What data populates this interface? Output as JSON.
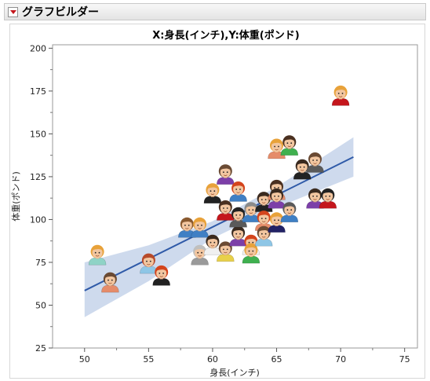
{
  "window": {
    "title": "グラフビルダー"
  },
  "chart_data": {
    "type": "scatter",
    "title": "X:身長(インチ),Y:体重(ポンド)",
    "xlabel": "身長(インチ)",
    "ylabel": "体重(ポンド)",
    "xlim": [
      47.5,
      76
    ],
    "ylim": [
      25,
      202
    ],
    "xticks": [
      50,
      55,
      60,
      65,
      70,
      75
    ],
    "yticks": [
      25,
      50,
      75,
      100,
      125,
      150,
      175,
      200
    ],
    "marker": "person-face-icon",
    "points": [
      {
        "x": 51,
        "y": 79,
        "hair": "#e8a23a",
        "shirt": "#8fd3c6"
      },
      {
        "x": 52,
        "y": 63,
        "hair": "#6a4a33",
        "shirt": "#e58c6a"
      },
      {
        "x": 55,
        "y": 74,
        "hair": "#b74a2a",
        "shirt": "#8ec6e6"
      },
      {
        "x": 56,
        "y": 67,
        "hair": "#d4441c",
        "shirt": "#222222"
      },
      {
        "x": 58,
        "y": 95,
        "hair": "#8a5a30",
        "shirt": "#3f7fc4"
      },
      {
        "x": 59,
        "y": 95,
        "hair": "#e8a23a",
        "shirt": "#3f7fc4"
      },
      {
        "x": 59,
        "y": 79,
        "hair": "#bfbfbf",
        "shirt": "#9a9a9a"
      },
      {
        "x": 60,
        "y": 85,
        "hair": "#3a2a1f",
        "shirt": "#f0f0f0"
      },
      {
        "x": 60,
        "y": 115,
        "hair": "#e8a23a",
        "shirt": "#222222"
      },
      {
        "x": 61,
        "y": 126,
        "hair": "#6a4a33",
        "shirt": "#7c3fa8"
      },
      {
        "x": 61,
        "y": 105,
        "hair": "#4a3020",
        "shirt": "#c4161c"
      },
      {
        "x": 61,
        "y": 81,
        "hair": "#6a4a33",
        "shirt": "#e8d04a"
      },
      {
        "x": 62,
        "y": 116,
        "hair": "#d4441c",
        "shirt": "#3f7fc4"
      },
      {
        "x": 62,
        "y": 90,
        "hair": "#3a2a1f",
        "shirt": "#7c3fa8"
      },
      {
        "x": 62,
        "y": 101,
        "hair": "#222222",
        "shirt": "#5a5a5a"
      },
      {
        "x": 63,
        "y": 104,
        "hair": "#8a8a8a",
        "shirt": "#3f7fc4"
      },
      {
        "x": 63,
        "y": 85,
        "hair": "#d4441c",
        "shirt": "#f0f0f0"
      },
      {
        "x": 63,
        "y": 80,
        "hair": "#e8a23a",
        "shirt": "#3fb04f"
      },
      {
        "x": 64,
        "y": 110,
        "hair": "#3a2a1f",
        "shirt": "#222222"
      },
      {
        "x": 64,
        "y": 99,
        "hair": "#d4441c",
        "shirt": "#e58c6a"
      },
      {
        "x": 64,
        "y": 90,
        "hair": "#6a4a33",
        "shirt": "#8ec6e6"
      },
      {
        "x": 65,
        "y": 117,
        "hair": "#4a3020",
        "shirt": "#e58c6a"
      },
      {
        "x": 65,
        "y": 112,
        "hair": "#3a2a1f",
        "shirt": "#7c3fa8"
      },
      {
        "x": 65,
        "y": 98,
        "hair": "#e8a23a",
        "shirt": "#222266"
      },
      {
        "x": 65,
        "y": 141,
        "hair": "#e8a23a",
        "shirt": "#e58c6a"
      },
      {
        "x": 66,
        "y": 143,
        "hair": "#4a3020",
        "shirt": "#3fb04f"
      },
      {
        "x": 66,
        "y": 104,
        "hair": "#5a5a5a",
        "shirt": "#3f7fc4"
      },
      {
        "x": 67,
        "y": 129,
        "hair": "#3a2a1f",
        "shirt": "#222222"
      },
      {
        "x": 68,
        "y": 133,
        "hair": "#6a4a33",
        "shirt": "#5a5a5a"
      },
      {
        "x": 68,
        "y": 112,
        "hair": "#3a2a1f",
        "shirt": "#7c3fa8"
      },
      {
        "x": 69,
        "y": 112,
        "hair": "#222222",
        "shirt": "#c4161c"
      },
      {
        "x": 70,
        "y": 172,
        "hair": "#e8a23a",
        "shirt": "#c4161c"
      }
    ],
    "fit_line": {
      "type": "linear",
      "x": [
        50,
        71
      ],
      "y": [
        58.5,
        136.5
      ],
      "color": "#2f5aa8"
    },
    "confidence_band": {
      "x": [
        50,
        55,
        60,
        65,
        71
      ],
      "lower": [
        43,
        64,
        89,
        107,
        125
      ],
      "upper": [
        75,
        85,
        99,
        119,
        148
      ],
      "color": "#c6d3ea"
    },
    "grid": false,
    "legend": "none"
  }
}
